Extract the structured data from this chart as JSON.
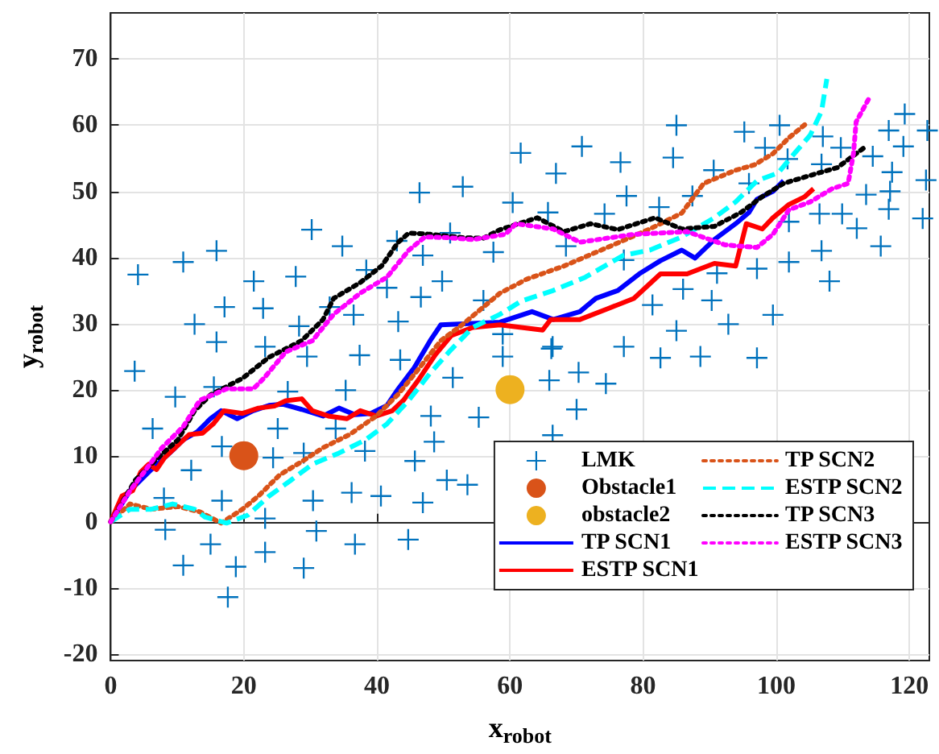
{
  "chart_data": {
    "type": "line",
    "xlabel": "x$_{robot}$",
    "ylabel": "y$_{robot}$",
    "xlim": [
      0,
      123
    ],
    "ylim": [
      -21,
      77
    ],
    "xticks": [
      0,
      20,
      40,
      60,
      80,
      100,
      120
    ],
    "yticks": [
      -20,
      -10,
      0,
      10,
      20,
      30,
      40,
      50,
      60,
      70
    ],
    "grid": true,
    "legend": "bottom right",
    "series": [
      {
        "name": "LMK",
        "type": "scatter",
        "marker": "cross",
        "color": "#0072bd",
        "x": [
          4.1,
          10.9,
          15.9,
          12.6,
          17.1,
          15.9,
          21.5,
          22.9,
          27.8,
          30.2,
          34.8,
          28.3,
          32.9,
          36.5,
          38.4,
          41.5,
          43,
          46.4,
          52.9,
          46.9,
          46.6,
          49.8,
          43.2,
          51,
          57.5,
          56,
          58.9,
          60.4,
          23.2,
          61.6,
          70.8,
          66.9,
          76.6,
          84.5,
          85,
          95.2,
          100.5,
          90.6,
          98.3,
          101.7,
          107,
          106.8,
          109.7,
          114.5,
          116.9,
          119.3,
          119.1,
          122.7,
          117.4,
          122.5,
          117.1,
          113.5,
          116.9,
          122,
          109.9,
          112.1,
          106.5,
          101.9,
          115.7,
          106.8,
          108,
          101.9,
          99.5,
          97.1,
          92.8,
          90.3,
          91.1,
          86,
          81.4,
          77.1,
          77.5,
          82.4,
          74.2,
          65.7,
          68.4,
          87.4,
          95.9,
          77.1,
          66.4,
          3.6,
          9.7,
          15.5,
          6.3,
          12.1,
          16.7,
          8,
          8.2,
          16.7,
          15,
          10.9,
          18.8,
          17.6,
          23.2,
          23.2,
          24.4,
          25.1,
          29.5,
          26.6,
          29,
          30.4,
          30.9,
          29,
          35.3,
          33.8,
          38.2,
          36.2,
          36.7,
          37.4,
          43.5,
          40.6,
          44.7,
          46.9,
          45.7,
          48.6,
          48.1,
          51.4,
          50.5,
          53.6,
          58.9,
          55.3,
          66.2,
          65.9,
          70.3,
          74.4,
          70,
          66.4,
          85,
          82.6,
          88.6,
          97.1
        ],
        "values": [
          37.4,
          39.3,
          41,
          29.9,
          32.5,
          27.2,
          36.4,
          32.3,
          37.1,
          44.2,
          41.7,
          29.6,
          32.5,
          31.3,
          38.1,
          35.4,
          42.5,
          49.8,
          50.7,
          40.3,
          34,
          36.4,
          30.3,
          43.7,
          40.8,
          33.5,
          28.4,
          48.3,
          26.5,
          55.8,
          56.8,
          52.7,
          54.4,
          55.1,
          60,
          59,
          60,
          53.2,
          56.6,
          54.9,
          58.3,
          54.1,
          56.6,
          55.3,
          59.2,
          61.7,
          56.8,
          59.2,
          52.9,
          51.7,
          50,
          49.5,
          47.3,
          45.9,
          46.6,
          44.4,
          46.6,
          45.4,
          41.7,
          41,
          36.4,
          39.3,
          31.3,
          38.3,
          29.9,
          33.5,
          37.6,
          35.2,
          32.8,
          39.6,
          49.3,
          47.6,
          46.6,
          46.8,
          41.7,
          49.3,
          51.2,
          26.5,
          26.5,
          22.8,
          18.9,
          20.4,
          14.1,
          7.8,
          11.4,
          3.6,
          -1.2,
          3.2,
          -3.4,
          -6.6,
          -6.8,
          -11.4,
          -4.6,
          0.5,
          9.7,
          14.1,
          25,
          19.7,
          10.4,
          3.2,
          -1.4,
          -7,
          19.9,
          14.1,
          10.7,
          4.4,
          -3.4,
          25.2,
          24.5,
          3.9,
          -2.7,
          2.9,
          9.2,
          12.1,
          16,
          21.8,
          6.3,
          5.6,
          25,
          15.8,
          26.2,
          21.4,
          22.6,
          20.9,
          17,
          13.1,
          28.9,
          24.8,
          25,
          24.8
        ]
      },
      {
        "name": "Obstacle1",
        "type": "scatter",
        "marker": "circle",
        "color": "#d95319",
        "x": [
          20
        ],
        "values": [
          10
        ]
      },
      {
        "name": "obstacle2",
        "type": "scatter",
        "marker": "circle",
        "color": "#edb120",
        "x": [
          60
        ],
        "values": [
          20
        ]
      },
      {
        "name": "TP SCN1",
        "marker": "none",
        "line_style": "solid",
        "color": "#0000ff",
        "x": [
          0,
          2.9,
          6.1,
          9.3,
          10.9,
          13,
          15,
          16.6,
          19,
          21.4,
          23.8,
          25.8,
          28.7,
          31.9,
          34.3,
          36.7,
          39.1,
          41.5,
          43.2,
          45.6,
          48,
          49.6,
          58.5,
          63.3,
          66.5,
          70.5,
          72.9,
          76.2,
          79.4,
          82.6,
          85.8,
          87.8,
          90.7,
          93.9,
          95.9,
          97.1,
          99.5,
          101.1
        ],
        "values": [
          0,
          4.7,
          7.9,
          10.8,
          12.4,
          13.6,
          15.6,
          16.8,
          15.6,
          16.8,
          17.6,
          17.8,
          17,
          16,
          17.2,
          16.2,
          16.4,
          17.6,
          20.1,
          23.3,
          27.4,
          29.8,
          30.2,
          31.8,
          30.6,
          31.8,
          33.8,
          35,
          37.5,
          39.5,
          41.1,
          39.9,
          42.7,
          45.1,
          46.8,
          48.8,
          50,
          51.6
        ]
      },
      {
        "name": "ESTP SCN1",
        "marker": "none",
        "line_style": "solid",
        "color": "#ff0000",
        "x": [
          0,
          1.7,
          3.3,
          4.5,
          5.7,
          6.9,
          8.1,
          10.1,
          11.8,
          13.8,
          15.4,
          17,
          19.8,
          22.2,
          24.6,
          26.3,
          28.7,
          30.3,
          32.7,
          35.5,
          37.5,
          39.9,
          42.3,
          44,
          46.4,
          48.8,
          51.2,
          54.4,
          58.5,
          61.7,
          64.9,
          66.1,
          70.5,
          74.6,
          78.6,
          82.6,
          86.6,
          90.7,
          93.9,
          95.5,
          97.9,
          99.5,
          101.9,
          104.3,
          105.6
        ],
        "values": [
          0,
          3.9,
          4.7,
          7.5,
          8.7,
          7.9,
          9.7,
          11.6,
          13.2,
          13.4,
          14.8,
          16.8,
          16.4,
          17.2,
          17.5,
          18.3,
          18.6,
          16.8,
          16,
          15.6,
          16.8,
          16,
          16.8,
          18.4,
          21.7,
          25.3,
          28.2,
          29.4,
          29.8,
          29.4,
          29,
          30.6,
          30.6,
          32.2,
          33.8,
          37.5,
          37.5,
          39.1,
          38.7,
          45.1,
          44.3,
          46,
          48,
          49.2,
          50.4
        ]
      },
      {
        "name": "TP SCN2",
        "marker": "none",
        "line_style": "dotted",
        "color": "#d95319",
        "x": [
          0,
          2.9,
          6.1,
          10.1,
          13.4,
          16.6,
          19.8,
          22.2,
          25.4,
          28.7,
          31.9,
          35.9,
          39.9,
          43.2,
          46.4,
          49.6,
          52.8,
          58.5,
          62.5,
          68.1,
          74.6,
          81,
          85.8,
          89.1,
          93.9,
          96.7,
          99.5,
          101.9,
          104.3
        ],
        "values": [
          0,
          2.7,
          1.9,
          2.3,
          1.5,
          -0.2,
          1.9,
          3.9,
          7.1,
          9.1,
          11.2,
          13.2,
          16,
          19.3,
          23.3,
          27.4,
          29.8,
          34.6,
          36.7,
          38.7,
          41.5,
          44.3,
          46.7,
          51.2,
          53.2,
          54,
          55.7,
          58.1,
          60.1
        ]
      },
      {
        "name": "ESTP SCN2",
        "marker": "none",
        "line_style": "dashed",
        "color": "#00ffff",
        "x": [
          0,
          2.9,
          6.1,
          9.3,
          12.6,
          14.2,
          17.4,
          20.6,
          23.8,
          27.1,
          30.3,
          34.3,
          38.3,
          41.5,
          44.8,
          48,
          51.2,
          54.4,
          58.5,
          61.7,
          66.5,
          71.3,
          77,
          81,
          85.8,
          90.7,
          93.9,
          97.1,
          100.3,
          102.7,
          105.1,
          106.8,
          107.6
        ],
        "values": [
          0,
          1.9,
          1.9,
          2.7,
          1.9,
          0.7,
          -0.2,
          1,
          3.9,
          6.3,
          8.7,
          10.4,
          12.4,
          14.8,
          18.4,
          22.5,
          26.1,
          29.4,
          31.4,
          33.4,
          35,
          37,
          40.3,
          41.1,
          43.1,
          46,
          48.4,
          51.6,
          52.8,
          55.7,
          58.5,
          62.1,
          67
        ]
      },
      {
        "name": "TP SCN3",
        "marker": "none",
        "line_style": "dotted",
        "color": "#000000",
        "x": [
          0,
          3.7,
          6.9,
          10.1,
          12.6,
          15,
          19.8,
          23.8,
          28.7,
          31.9,
          33.5,
          37.5,
          40.7,
          43.2,
          44.8,
          48,
          52.8,
          56,
          58.5,
          64.1,
          68.1,
          72.1,
          76.2,
          81.8,
          85.8,
          90.7,
          94.7,
          97.9,
          101.1,
          105.1,
          109.2,
          113.2
        ],
        "values": [
          0,
          6.3,
          9.5,
          12.4,
          16.8,
          19.2,
          21.7,
          24.9,
          27.4,
          30.6,
          33.8,
          36.2,
          38.7,
          42.3,
          43.7,
          43.5,
          43,
          42.9,
          44.2,
          46,
          43.9,
          45.1,
          44.2,
          46,
          44.3,
          44.7,
          46.8,
          49.2,
          51.2,
          52.4,
          53.6,
          56.6
        ]
      },
      {
        "name": "ESTP SCN3",
        "marker": "none",
        "line_style": "dotted",
        "color": "#ff00ff",
        "x": [
          0,
          2.9,
          5.3,
          7.7,
          10.9,
          13.4,
          17.4,
          21.4,
          23,
          26.3,
          30.3,
          33.5,
          37.5,
          41.5,
          44.8,
          47.2,
          50.4,
          54.4,
          59.3,
          60.9,
          66.5,
          70.5,
          78.6,
          86.6,
          92.3,
          97.1,
          99.5,
          101.9,
          105.1,
          108.4,
          110.8,
          111.6,
          112,
          114
        ],
        "values": [
          0,
          4.7,
          7.9,
          11.2,
          14.4,
          18.4,
          20.1,
          20.1,
          21.7,
          25.7,
          27.4,
          31.4,
          34.6,
          37,
          41.1,
          43.1,
          43,
          42.7,
          43.5,
          45.1,
          44.3,
          42.3,
          43.5,
          43.9,
          41.9,
          41.5,
          43.5,
          47.2,
          48.4,
          50.4,
          51.2,
          55.7,
          60.5,
          64.2
        ]
      }
    ]
  }
}
